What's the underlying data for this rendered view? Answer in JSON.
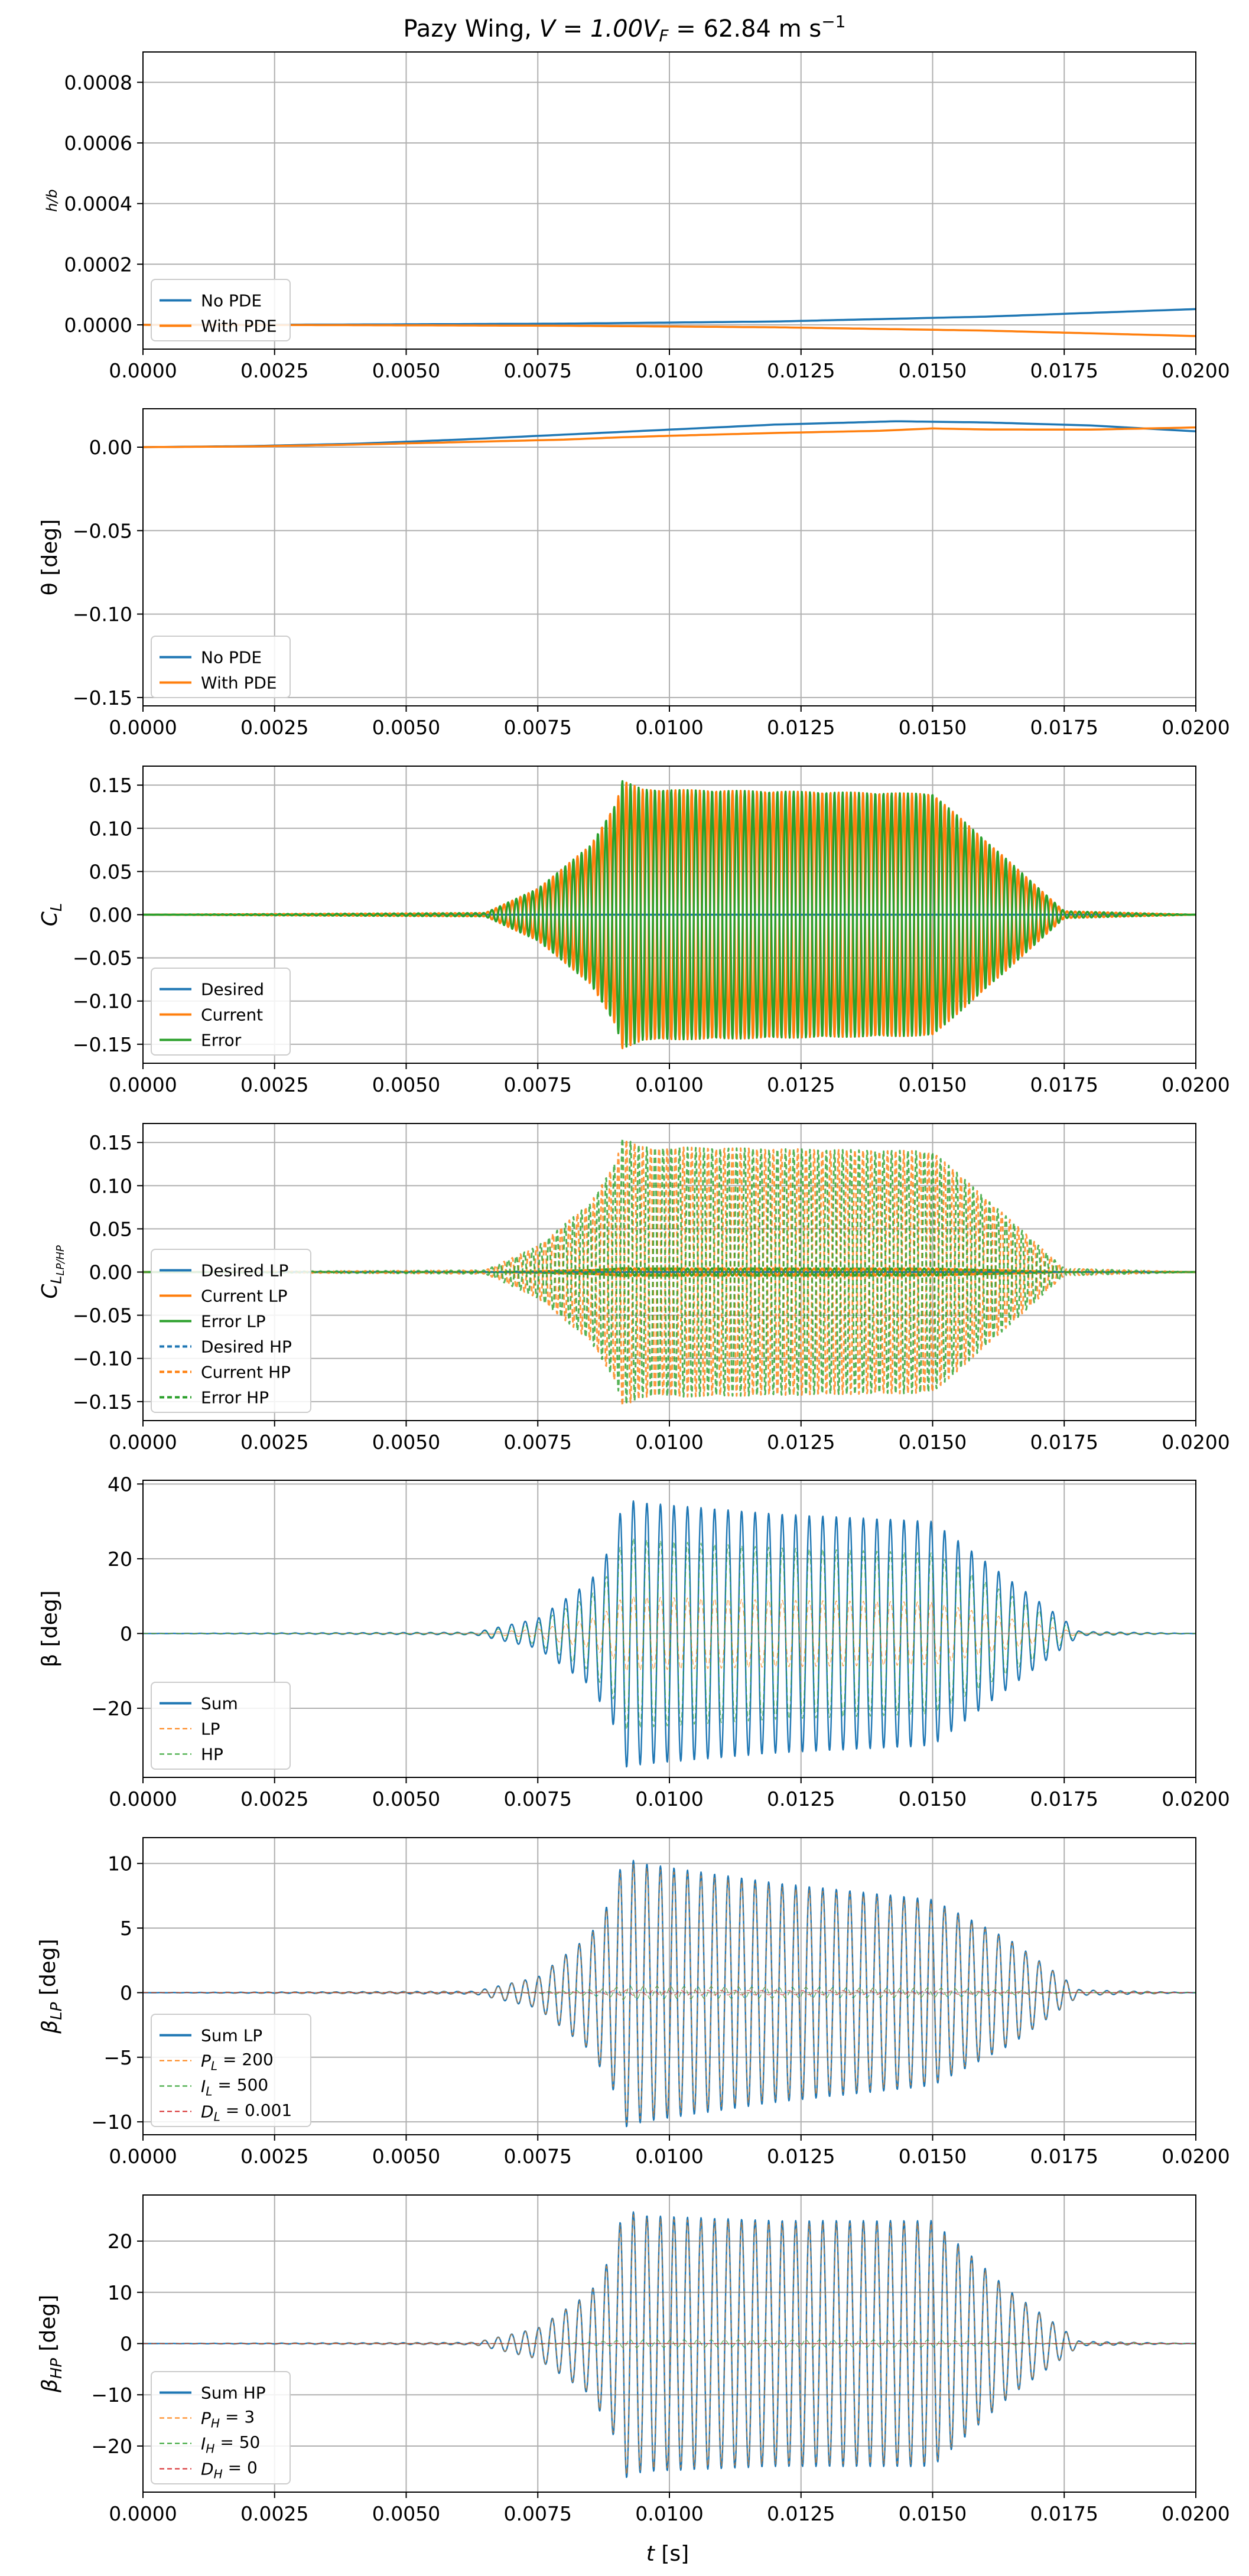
{
  "figure": {
    "title_prefix": "Pazy Wing, ",
    "title_math": "V = 1.00V",
    "title_sub": "F",
    "title_value": " = 62.84 m s",
    "title_exp": "−1",
    "xlabel": "t",
    "xlabel_unit": " [s]"
  },
  "chart_data": [
    {
      "type": "line",
      "ylabel": "h/b",
      "xlim": [
        0,
        0.02
      ],
      "ylim": [
        -8e-05,
        0.0009
      ],
      "yticks": [
        "0.0000",
        "0.0002",
        "0.0004",
        "0.0006",
        "0.0008"
      ],
      "ytick_values": [
        0,
        0.0002,
        0.0004,
        0.0006,
        0.0008
      ],
      "xticks": [
        "0.0000",
        "0.0025",
        "0.0050",
        "0.0075",
        "0.0100",
        "0.0125",
        "0.0150",
        "0.0175",
        "0.0200"
      ],
      "grid": true,
      "legend_placement": "lower-left",
      "series": [
        {
          "name": "No PDE",
          "color": "#1f77b4",
          "style": "solid",
          "x": [
            0,
            0.004,
            0.008,
            0.012,
            0.016,
            0.02
          ],
          "y": [
            0,
            1e-06,
            4e-06,
            1.1e-05,
            2.7e-05,
            5.2e-05
          ]
        },
        {
          "name": "With PDE",
          "color": "#ff7f0e",
          "style": "solid",
          "x": [
            0,
            0.004,
            0.008,
            0.012,
            0.016,
            0.02
          ],
          "y": [
            0,
            -1e-06,
            -3e-06,
            -8e-06,
            -1.9e-05,
            -3.7e-05
          ]
        }
      ]
    },
    {
      "type": "line",
      "ylabel": "θ [deg]",
      "xlim": [
        0,
        0.02
      ],
      "ylim": [
        -0.155,
        0.023
      ],
      "yticks": [
        "0.00",
        "−0.05",
        "−0.10",
        "−0.15"
      ],
      "ytick_values": [
        0,
        -0.05,
        -0.1,
        -0.15
      ],
      "xticks": [
        "0.0000",
        "0.0025",
        "0.0050",
        "0.0075",
        "0.0100",
        "0.0125",
        "0.0150",
        "0.0175",
        "0.0200"
      ],
      "grid": true,
      "legend_placement": "lower-left",
      "series": [
        {
          "name": "No PDE",
          "color": "#1f77b4",
          "style": "solid",
          "x": [
            0,
            0.002,
            0.004,
            0.006,
            0.008,
            0.01,
            0.012,
            0.0143,
            0.016,
            0.018,
            0.02
          ],
          "y": [
            0,
            0.0006,
            0.002,
            0.0045,
            0.0075,
            0.0105,
            0.0135,
            0.0155,
            0.0148,
            0.013,
            0.0095
          ]
        },
        {
          "name": "With PDE",
          "color": "#ff7f0e",
          "style": "solid",
          "x": [
            0,
            0.002,
            0.004,
            0.006,
            0.008,
            0.009,
            0.01,
            0.012,
            0.014,
            0.015,
            0.016,
            0.018,
            0.02
          ],
          "y": [
            0,
            0.0004,
            0.0015,
            0.003,
            0.0045,
            0.0058,
            0.0068,
            0.0085,
            0.0098,
            0.0112,
            0.0106,
            0.0105,
            0.0118
          ]
        }
      ]
    },
    {
      "type": "line",
      "ylabel": "C_L",
      "xlim": [
        0,
        0.02
      ],
      "ylim": [
        -0.172,
        0.172
      ],
      "yticks": [
        "0.15",
        "0.10",
        "0.05",
        "0.00",
        "−0.05",
        "−0.10",
        "−0.15"
      ],
      "ytick_values": [
        0.15,
        0.1,
        0.05,
        0,
        -0.05,
        -0.1,
        -0.15
      ],
      "xticks": [
        "0.0000",
        "0.0025",
        "0.0050",
        "0.0075",
        "0.0100",
        "0.0125",
        "0.0150",
        "0.0175",
        "0.0200"
      ],
      "grid": true,
      "legend_placement": "lower-left",
      "oscillation": {
        "period": 0.000155,
        "envelope_t": [
          0,
          0.0065,
          0.0075,
          0.0085,
          0.009,
          0.0091,
          0.0095,
          0.015,
          0.0163,
          0.0175,
          0.02
        ],
        "envelope_a": [
          0,
          0.002,
          0.03,
          0.08,
          0.13,
          0.155,
          0.145,
          0.14,
          0.07,
          0.004,
          0
        ]
      },
      "series": [
        {
          "name": "Desired",
          "color": "#1f77b4",
          "style": "solid",
          "x": [
            0,
            0.02
          ],
          "y": [
            0,
            0
          ]
        },
        {
          "name": "Current",
          "color": "#ff7f0e",
          "style": "solid",
          "osc_scale": 1.0,
          "osc_phase": 0
        },
        {
          "name": "Error",
          "color": "#2ca02c",
          "style": "solid",
          "osc_scale": 1.0,
          "osc_phase": 3.1416
        }
      ]
    },
    {
      "type": "line",
      "ylabel": "C_L_LP/HP",
      "xlim": [
        0,
        0.02
      ],
      "ylim": [
        -0.172,
        0.172
      ],
      "yticks": [
        "0.15",
        "0.10",
        "0.05",
        "0.00",
        "−0.05",
        "−0.10",
        "−0.15"
      ],
      "ytick_values": [
        0.15,
        0.1,
        0.05,
        0,
        -0.05,
        -0.1,
        -0.15
      ],
      "xticks": [
        "0.0000",
        "0.0025",
        "0.0050",
        "0.0075",
        "0.0100",
        "0.0125",
        "0.0150",
        "0.0175",
        "0.0200"
      ],
      "grid": true,
      "legend_placement": "lower-left",
      "oscillation": {
        "period": 0.000155,
        "envelope_t": [
          0,
          0.0065,
          0.0075,
          0.0085,
          0.009,
          0.0091,
          0.0095,
          0.015,
          0.0163,
          0.0175,
          0.02
        ],
        "envelope_a": [
          0,
          0.002,
          0.03,
          0.08,
          0.13,
          0.155,
          0.145,
          0.14,
          0.07,
          0.004,
          0
        ]
      },
      "series": [
        {
          "name": "Desired LP",
          "color": "#1f77b4",
          "style": "solid",
          "x": [
            0,
            0.02
          ],
          "y": [
            0,
            0
          ]
        },
        {
          "name": "Current LP",
          "color": "#ff7f0e",
          "style": "solid",
          "osc_scale": 0.03,
          "osc_phase": 0
        },
        {
          "name": "Error LP",
          "color": "#2ca02c",
          "style": "solid",
          "osc_scale": 0.03,
          "osc_phase": 3.1416
        },
        {
          "name": "Desired HP",
          "color": "#1f77b4",
          "style": "dashed",
          "x": [
            0,
            0.02
          ],
          "y": [
            0,
            0
          ]
        },
        {
          "name": "Current HP",
          "color": "#ff7f0e",
          "style": "dashed",
          "osc_scale": 1.0,
          "osc_phase": 0
        },
        {
          "name": "Error HP",
          "color": "#2ca02c",
          "style": "dashed",
          "osc_scale": 1.0,
          "osc_phase": 3.1416
        }
      ]
    },
    {
      "type": "line",
      "ylabel": "β [deg]",
      "xlim": [
        0,
        0.02
      ],
      "ylim": [
        -38.5,
        41
      ],
      "yticks": [
        "40",
        "20",
        "0",
        "−20"
      ],
      "ytick_values": [
        40,
        20,
        0,
        -20
      ],
      "xticks": [
        "0.0000",
        "0.0025",
        "0.0050",
        "0.0075",
        "0.0100",
        "0.0125",
        "0.0150",
        "0.0175",
        "0.0200"
      ],
      "grid": true,
      "legend_placement": "lower-left",
      "oscillation": {
        "period": 0.000257,
        "envelope_t": [
          0,
          0.0063,
          0.0075,
          0.0085,
          0.009,
          0.0091,
          0.0095,
          0.012,
          0.015,
          0.0165,
          0.0178,
          0.02
        ],
        "envelope_a": [
          0,
          0.3,
          4,
          14,
          26,
          36,
          35,
          32,
          30,
          14,
          0.5,
          0
        ]
      },
      "series": [
        {
          "name": "Sum",
          "color": "#1f77b4",
          "style": "solid",
          "width": 2.4,
          "osc_scale": 1.0,
          "osc_phase": 0
        },
        {
          "name": "LP",
          "color": "#ff7f0e",
          "style": "dashed",
          "width": 1.2,
          "osc_scale": 0.28,
          "osc_phase": 0
        },
        {
          "name": "HP",
          "color": "#2ca02c",
          "style": "dashed",
          "width": 1.2,
          "osc_scale": 0.72,
          "osc_phase": 0
        }
      ]
    },
    {
      "type": "line",
      "ylabel": "β_LP [deg]",
      "xlim": [
        0,
        0.02
      ],
      "ylim": [
        -11,
        12
      ],
      "yticks": [
        "10",
        "5",
        "0",
        "−5",
        "−10"
      ],
      "ytick_values": [
        10,
        5,
        0,
        -5,
        -10
      ],
      "xticks": [
        "0.0000",
        "0.0025",
        "0.0050",
        "0.0075",
        "0.0100",
        "0.0125",
        "0.0150",
        "0.0175",
        "0.0200"
      ],
      "grid": true,
      "legend_placement": "lower-left",
      "oscillation": {
        "period": 0.000257,
        "envelope_t": [
          0,
          0.0063,
          0.0075,
          0.0085,
          0.009,
          0.0091,
          0.0095,
          0.012,
          0.015,
          0.0165,
          0.0178,
          0.02
        ],
        "envelope_a": [
          0,
          0.1,
          1.2,
          4.5,
          8,
          10.5,
          10,
          8.5,
          7.2,
          4,
          0.2,
          0
        ]
      },
      "series": [
        {
          "name": "Sum LP",
          "color": "#1f77b4",
          "style": "solid",
          "width": 2.4,
          "osc_scale": 1.0,
          "osc_phase": 0
        },
        {
          "name": "P_L = 200",
          "color": "#ff7f0e",
          "style": "dashed",
          "width": 1.2,
          "osc_scale": 0.97,
          "osc_phase": 0
        },
        {
          "name": "I_L = 500",
          "color": "#2ca02c",
          "style": "dashed",
          "width": 1.2,
          "osc_scale": 0.05,
          "osc_phase": 1.57
        },
        {
          "name": "D_L = 0.001",
          "color": "#d62728",
          "style": "dashed",
          "width": 1.2,
          "osc_scale": 0.02,
          "osc_phase": 3.1416
        }
      ]
    },
    {
      "type": "line",
      "ylabel": "β_HP [deg]",
      "xlim": [
        0,
        0.02
      ],
      "ylim": [
        -29,
        29
      ],
      "yticks": [
        "20",
        "10",
        "0",
        "−10",
        "−20"
      ],
      "ytick_values": [
        20,
        10,
        0,
        -10,
        -20
      ],
      "xticks": [
        "0.0000",
        "0.0025",
        "0.0050",
        "0.0075",
        "0.0100",
        "0.0125",
        "0.0150",
        "0.0175",
        "0.0200"
      ],
      "grid": true,
      "legend_placement": "lower-left",
      "oscillation": {
        "period": 0.000257,
        "envelope_t": [
          0,
          0.0063,
          0.0075,
          0.0085,
          0.009,
          0.0091,
          0.0095,
          0.012,
          0.015,
          0.0165,
          0.0178,
          0.02
        ],
        "envelope_a": [
          0,
          0.2,
          3,
          10,
          19,
          26.5,
          25,
          24,
          24,
          10,
          0.4,
          0
        ]
      },
      "series": [
        {
          "name": "Sum HP",
          "color": "#1f77b4",
          "style": "solid",
          "width": 2.4,
          "osc_scale": 1.0,
          "osc_phase": 0
        },
        {
          "name": "P_H = 3",
          "color": "#ff7f0e",
          "style": "dashed",
          "width": 1.2,
          "osc_scale": 0.98,
          "osc_phase": 0
        },
        {
          "name": "I_H = 50",
          "color": "#2ca02c",
          "style": "dashed",
          "width": 1.2,
          "osc_scale": 0.03,
          "osc_phase": 1.57
        },
        {
          "name": "D_H = 0",
          "color": "#d62728",
          "style": "dashed",
          "width": 1.2,
          "osc_scale": 0.0,
          "osc_phase": 0
        }
      ]
    }
  ]
}
